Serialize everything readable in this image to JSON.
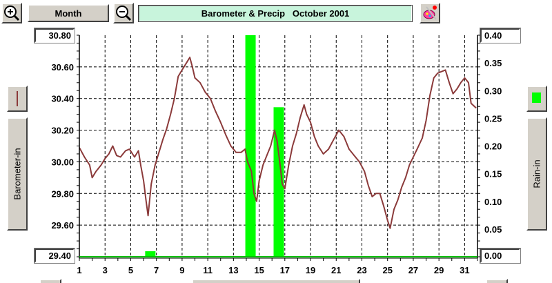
{
  "toolbar": {
    "zoom_in_icon": "zoom-in-magnifier",
    "zoom_out_icon": "zoom-out-magnifier",
    "period_label": "Month",
    "paint_icon": "paint-palette",
    "title": "Barometer & Precip   October 2001"
  },
  "left_panel": {
    "axis_label": "Barometer-in",
    "legend_color": "#8b3a3a"
  },
  "right_panel": {
    "axis_label": "Rain-in",
    "legend_color": "#00ff00"
  },
  "chart_data": {
    "type": "line",
    "title": "Barometer & Precip   October 2001",
    "x_ticks": [
      "1",
      "3",
      "5",
      "7",
      "9",
      "11",
      "13",
      "15",
      "17",
      "19",
      "21",
      "23",
      "25",
      "27",
      "29",
      "31"
    ],
    "xlim": [
      1,
      32
    ],
    "grid": true,
    "left_axis": {
      "label": "Barometer-in",
      "ylim": [
        29.4,
        30.8
      ],
      "ticks": [
        "30.80",
        "30.60",
        "30.40",
        "30.20",
        "30.00",
        "29.80",
        "29.60",
        "29.40"
      ],
      "tick_values": [
        30.8,
        30.6,
        30.4,
        30.2,
        30.0,
        29.8,
        29.6,
        29.4
      ]
    },
    "right_axis": {
      "label": "Rain-in",
      "ylim": [
        0,
        0.4
      ],
      "ticks": [
        "0.40",
        "0.35",
        "0.30",
        "0.25",
        "0.20",
        "0.15",
        "0.10",
        "0.05",
        "0.00"
      ],
      "tick_values": [
        0.4,
        0.35,
        0.3,
        0.25,
        0.2,
        0.15,
        0.1,
        0.05,
        0.0
      ]
    },
    "series": [
      {
        "axis": "left",
        "kind": "line",
        "color": "#8b3a3a",
        "points": [
          [
            1.0,
            30.09
          ],
          [
            1.4,
            30.03
          ],
          [
            1.8,
            29.98
          ],
          [
            2.0,
            29.9
          ],
          [
            2.3,
            29.94
          ],
          [
            2.7,
            29.98
          ],
          [
            3.0,
            30.02
          ],
          [
            3.3,
            30.05
          ],
          [
            3.6,
            30.1
          ],
          [
            3.9,
            30.04
          ],
          [
            4.2,
            30.03
          ],
          [
            4.6,
            30.07
          ],
          [
            4.9,
            30.08
          ],
          [
            5.3,
            30.03
          ],
          [
            5.6,
            30.07
          ],
          [
            5.8,
            29.97
          ],
          [
            6.0,
            29.88
          ],
          [
            6.2,
            29.75
          ],
          [
            6.35,
            29.66
          ],
          [
            6.6,
            29.86
          ],
          [
            6.9,
            29.98
          ],
          [
            7.2,
            30.06
          ],
          [
            7.5,
            30.14
          ],
          [
            7.8,
            30.21
          ],
          [
            8.1,
            30.3
          ],
          [
            8.4,
            30.4
          ],
          [
            8.7,
            30.54
          ],
          [
            9.0,
            30.58
          ],
          [
            9.3,
            30.62
          ],
          [
            9.6,
            30.66
          ],
          [
            9.8,
            30.6
          ],
          [
            10.0,
            30.53
          ],
          [
            10.4,
            30.5
          ],
          [
            10.8,
            30.44
          ],
          [
            11.2,
            30.4
          ],
          [
            11.6,
            30.32
          ],
          [
            12.0,
            30.25
          ],
          [
            12.4,
            30.17
          ],
          [
            12.8,
            30.1
          ],
          [
            13.2,
            30.06
          ],
          [
            13.6,
            30.06
          ],
          [
            13.9,
            30.08
          ],
          [
            14.1,
            30.0
          ],
          [
            14.4,
            29.94
          ],
          [
            14.6,
            29.8
          ],
          [
            14.8,
            29.75
          ],
          [
            15.0,
            29.88
          ],
          [
            15.3,
            29.98
          ],
          [
            15.6,
            30.04
          ],
          [
            15.9,
            30.1
          ],
          [
            16.2,
            30.2
          ],
          [
            16.4,
            30.13
          ],
          [
            16.6,
            30.0
          ],
          [
            16.8,
            29.86
          ],
          [
            17.0,
            29.83
          ],
          [
            17.3,
            29.98
          ],
          [
            17.6,
            30.1
          ],
          [
            17.9,
            30.18
          ],
          [
            18.2,
            30.28
          ],
          [
            18.5,
            30.36
          ],
          [
            18.7,
            30.3
          ],
          [
            19.0,
            30.25
          ],
          [
            19.3,
            30.16
          ],
          [
            19.6,
            30.1
          ],
          [
            20.0,
            30.05
          ],
          [
            20.4,
            30.08
          ],
          [
            20.8,
            30.14
          ],
          [
            21.2,
            30.2
          ],
          [
            21.6,
            30.16
          ],
          [
            22.0,
            30.08
          ],
          [
            22.4,
            30.04
          ],
          [
            22.8,
            30.0
          ],
          [
            23.2,
            29.94
          ],
          [
            23.5,
            29.85
          ],
          [
            23.8,
            29.78
          ],
          [
            24.1,
            29.8
          ],
          [
            24.4,
            29.8
          ],
          [
            24.7,
            29.72
          ],
          [
            25.0,
            29.63
          ],
          [
            25.2,
            29.58
          ],
          [
            25.5,
            29.7
          ],
          [
            25.8,
            29.76
          ],
          [
            26.1,
            29.84
          ],
          [
            26.4,
            29.9
          ],
          [
            26.7,
            29.98
          ],
          [
            27.0,
            30.03
          ],
          [
            27.3,
            30.08
          ],
          [
            27.7,
            30.15
          ],
          [
            28.0,
            30.26
          ],
          [
            28.3,
            30.42
          ],
          [
            28.6,
            30.53
          ],
          [
            28.9,
            30.56
          ],
          [
            29.2,
            30.57
          ],
          [
            29.5,
            30.58
          ],
          [
            29.8,
            30.5
          ],
          [
            30.1,
            30.43
          ],
          [
            30.4,
            30.46
          ],
          [
            30.7,
            30.5
          ],
          [
            31.0,
            30.53
          ],
          [
            31.3,
            30.5
          ],
          [
            31.5,
            30.37
          ],
          [
            31.9,
            30.34
          ]
        ]
      },
      {
        "axis": "right",
        "kind": "bar",
        "color": "#00ff00",
        "points": [
          [
            6.5,
            0.01
          ],
          [
            14.3,
            0.4
          ],
          [
            16.5,
            0.27
          ]
        ]
      }
    ]
  }
}
